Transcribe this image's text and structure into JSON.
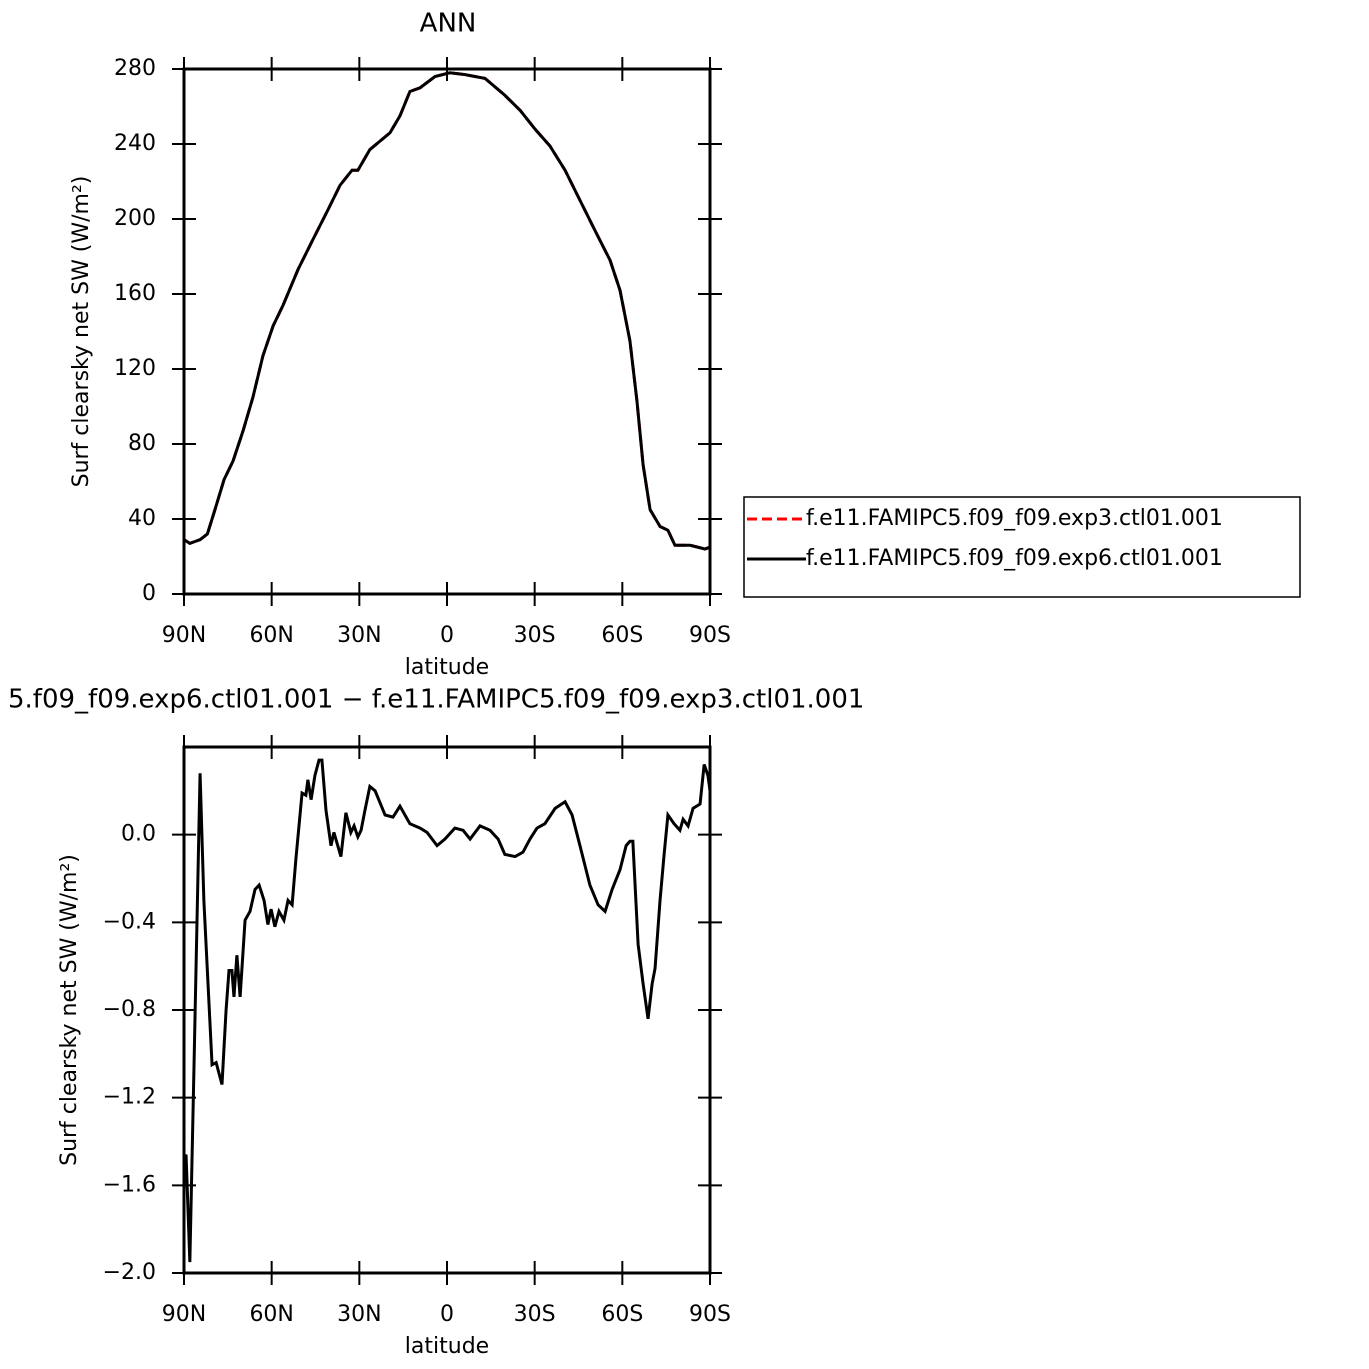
{
  "chart_data": [
    {
      "type": "line",
      "title": "ANN",
      "xlabel": "latitude",
      "ylabel": "Surf clearsky net SW (W/m²)",
      "x": [
        90,
        88,
        84.5,
        82,
        79.4,
        76.3,
        73.2,
        69.8,
        66.4,
        63,
        59.5,
        56.1,
        51,
        45.9,
        40.7,
        36.6,
        32.5,
        30.5,
        26.4,
        19.5,
        16.1,
        12.7,
        9.2,
        4.1,
        -1,
        -6.2,
        -13,
        -19.8,
        -25,
        -30.1,
        -35.2,
        -40.4,
        -45.5,
        -50.6,
        -55.8,
        -59.2,
        -62.6,
        -65,
        -67.1,
        -69.5,
        -72.9,
        -75.6,
        -78,
        -83.2,
        -88.3,
        -90
      ],
      "series": [
        {
          "name": "f.e11.FAMIPC5.f09_f09.exp3.ctl01.001",
          "color": "#ff0000",
          "line_style": "dashed",
          "values": [
            29,
            27,
            29,
            32,
            45,
            61,
            71,
            87,
            105,
            127,
            143,
            154,
            173,
            189,
            205,
            218,
            226,
            226,
            237,
            246,
            255,
            268,
            270,
            276,
            278,
            277,
            275,
            266,
            258,
            248,
            239,
            226,
            210,
            194,
            178,
            162,
            135,
            103,
            69,
            45,
            36,
            34,
            26,
            26,
            24,
            25
          ]
        },
        {
          "name": "f.e11.FAMIPC5.f09_f09.exp6.ctl01.001",
          "color": "#000000",
          "line_style": "solid",
          "values": [
            29,
            27,
            29,
            32,
            45,
            61,
            71,
            87,
            105,
            127,
            143,
            154,
            173,
            189,
            205,
            218,
            226,
            226,
            237,
            246,
            255,
            268,
            270,
            276,
            278,
            277,
            275,
            266,
            258,
            248,
            239,
            226,
            210,
            194,
            178,
            162,
            135,
            103,
            69,
            45,
            36,
            34,
            26,
            26,
            24,
            25
          ]
        }
      ],
      "xlim": [
        90,
        -90
      ],
      "xticks": [
        {
          "value": 90,
          "label": "90N"
        },
        {
          "value": 60,
          "label": "60N"
        },
        {
          "value": 30,
          "label": "30N"
        },
        0,
        {
          "value": -30,
          "label": "30S"
        },
        {
          "value": -60,
          "label": "60S"
        },
        {
          "value": -90,
          "label": "90S"
        }
      ],
      "ylim": [
        0,
        280
      ],
      "yticks": [
        0,
        40,
        80,
        120,
        160,
        200,
        240,
        280
      ],
      "legend": "right"
    },
    {
      "type": "line",
      "title": "5.f09_f09.exp6.ctl01.001 − f.e11.FAMIPC5.f09_f09.exp3.ctl01.001",
      "xlabel": "latitude",
      "ylabel": "Surf clearsky net SW (W/m²)",
      "x": [
        90,
        89.3,
        88,
        86.6,
        84.5,
        83.2,
        80.4,
        79,
        77,
        75.6,
        74.6,
        73.6,
        72.9,
        71.9,
        70.8,
        69.1,
        67.4,
        65.7,
        64.3,
        62.6,
        61.3,
        60.2,
        58.9,
        57.5,
        55.8,
        54.4,
        53,
        51.7,
        49.6,
        48.3,
        47.6,
        46.5,
        45.2,
        43.8,
        42.8,
        41.4,
        39.7,
        38.7,
        36.3,
        34.6,
        32.9,
        31.8,
        30.5,
        29.4,
        28.1,
        26.4,
        24.6,
        21.2,
        18.5,
        16.1,
        12.7,
        9.2,
        6.8,
        3.4,
        0.7,
        -2.7,
        -5.5,
        -7.9,
        -11.3,
        -14.7,
        -17.5,
        -19.8,
        -23.3,
        -26,
        -28.4,
        -30.8,
        -33.5,
        -37,
        -40.4,
        -42.8,
        -45.5,
        -48.9,
        -51.7,
        -54.1,
        -56.5,
        -59.2,
        -61.3,
        -62.6,
        -63.6,
        -65.4,
        -67.1,
        -68.8,
        -70.2,
        -71.2,
        -72.9,
        -74.3,
        -75.6,
        -77.7,
        -79.7,
        -80.8,
        -82.5,
        -84.2,
        -86.6,
        -88,
        -89.3,
        -90
      ],
      "color": "#000000",
      "line_style": "solid",
      "values": [
        -1.48,
        -1.46,
        -1.95,
        -1.07,
        0.28,
        -0.3,
        -1.05,
        -1.04,
        -1.14,
        -0.8,
        -0.62,
        -0.62,
        -0.74,
        -0.55,
        -0.74,
        -0.39,
        -0.35,
        -0.25,
        -0.23,
        -0.3,
        -0.41,
        -0.34,
        -0.42,
        -0.35,
        -0.39,
        -0.3,
        -0.32,
        -0.11,
        0.19,
        0.18,
        0.25,
        0.16,
        0.27,
        0.34,
        0.34,
        0.11,
        -0.05,
        0.01,
        -0.1,
        0.1,
        0.01,
        0.04,
        -0.01,
        0.02,
        0.11,
        0.22,
        0.2,
        0.09,
        0.08,
        0.13,
        0.05,
        0.03,
        0.01,
        -0.05,
        -0.02,
        0.03,
        0.02,
        -0.02,
        0.04,
        0.02,
        -0.02,
        -0.09,
        -0.1,
        -0.08,
        -0.02,
        0.03,
        0.05,
        0.12,
        0.15,
        0.09,
        -0.05,
        -0.23,
        -0.32,
        -0.35,
        -0.25,
        -0.16,
        -0.05,
        -0.03,
        -0.03,
        -0.5,
        -0.68,
        -0.84,
        -0.68,
        -0.61,
        -0.3,
        -0.09,
        0.09,
        0.05,
        0.02,
        0.07,
        0.04,
        0.12,
        0.14,
        0.32,
        0.27,
        0.2
      ],
      "xlim": [
        90,
        -90
      ],
      "xticks": [
        {
          "value": 90,
          "label": "90N"
        },
        {
          "value": 60,
          "label": "60N"
        },
        {
          "value": 30,
          "label": "30N"
        },
        0,
        {
          "value": -30,
          "label": "30S"
        },
        {
          "value": -60,
          "label": "60S"
        },
        {
          "value": -90,
          "label": "90S"
        }
      ],
      "ylim": [
        -2.0,
        0.4
      ],
      "yticks": [
        {
          "value": -2.0,
          "label": "−2.0"
        },
        {
          "value": -1.6,
          "label": "−1.6"
        },
        {
          "value": -1.2,
          "label": "−1.2"
        },
        {
          "value": -0.8,
          "label": "−0.8"
        },
        {
          "value": -0.4,
          "label": "−0.4"
        },
        {
          "value": 0,
          "label": "0.0"
        }
      ]
    }
  ]
}
